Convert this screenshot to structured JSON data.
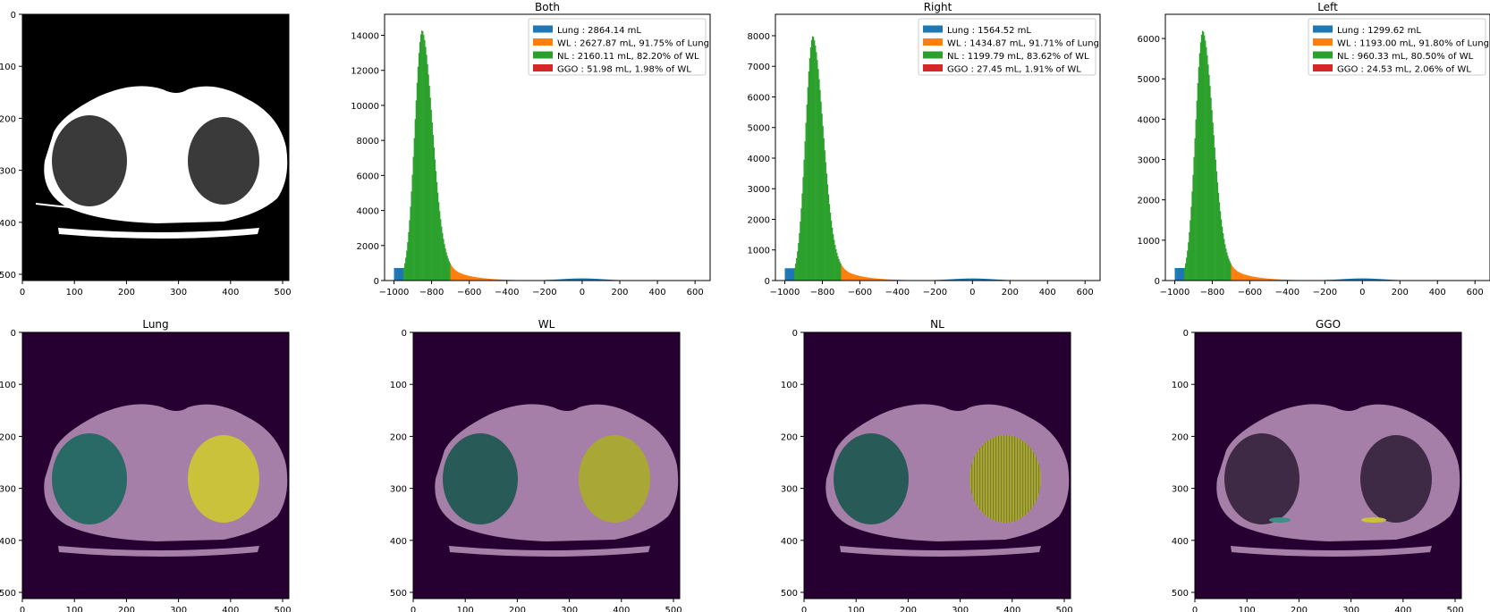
{
  "colors": {
    "lung": "#1f77b4",
    "wl": "#ff7f0e",
    "nl": "#2ca02c",
    "ggo": "#d62728",
    "overlay_bg": "#260030",
    "overlay_body": "#a67fa8",
    "overlay_right": "#2a6a66",
    "overlay_left": "#c9c23a"
  },
  "ct_axes": {
    "x_ticks": [
      "0",
      "100",
      "200",
      "300",
      "400",
      "500"
    ],
    "y_ticks": [
      "0",
      "100",
      "200",
      "300",
      "400",
      "500"
    ]
  },
  "overlay_titles": [
    "Lung",
    "WL",
    "NL",
    "GGO"
  ],
  "chart_data": [
    {
      "type": "histogram",
      "title": "Both",
      "xlim": [
        -1050,
        680
      ],
      "ylim": [
        0,
        15200
      ],
      "x_ticks": [
        "-1000",
        "-800",
        "-600",
        "-400",
        "-200",
        "0",
        "200",
        "400",
        "600"
      ],
      "y_ticks": [
        "0",
        "2000",
        "4000",
        "6000",
        "8000",
        "10000",
        "12000",
        "14000"
      ],
      "peak_x": -850,
      "peak_y": 14300,
      "legend": [
        "Lung : 2864.14 mL",
        "WL : 2627.87 mL, 91.75% of Lung",
        "NL : 2160.11 mL, 82.20% of WL",
        "GGO : 51.98 mL, 1.98% of WL"
      ]
    },
    {
      "type": "histogram",
      "title": "Right",
      "xlim": [
        -1050,
        680
      ],
      "ylim": [
        0,
        8700
      ],
      "x_ticks": [
        "-1000",
        "-800",
        "-600",
        "-400",
        "-200",
        "0",
        "200",
        "400",
        "600"
      ],
      "y_ticks": [
        "0",
        "1000",
        "2000",
        "3000",
        "4000",
        "5000",
        "6000",
        "7000",
        "8000"
      ],
      "peak_x": -850,
      "peak_y": 8000,
      "legend": [
        "Lung : 1564.52 mL",
        "WL : 1434.87 mL, 91.71% of Lung",
        "NL : 1199.79 mL, 83.62% of WL",
        "GGO : 27.45 mL, 1.91% of WL"
      ]
    },
    {
      "type": "histogram",
      "title": "Left",
      "xlim": [
        -1050,
        680
      ],
      "ylim": [
        0,
        6600
      ],
      "x_ticks": [
        "-1000",
        "-800",
        "-600",
        "-400",
        "-200",
        "0",
        "200",
        "400",
        "600"
      ],
      "y_ticks": [
        "0",
        "1000",
        "2000",
        "3000",
        "4000",
        "5000",
        "6000"
      ],
      "peak_x": -850,
      "peak_y": 6200,
      "legend": [
        "Lung : 1299.62 mL",
        "WL : 1193.00 mL, 91.80% of Lung",
        "NL : 960.33 mL, 80.50% of WL",
        "GGO : 24.53 mL, 2.06% of WL"
      ]
    }
  ]
}
